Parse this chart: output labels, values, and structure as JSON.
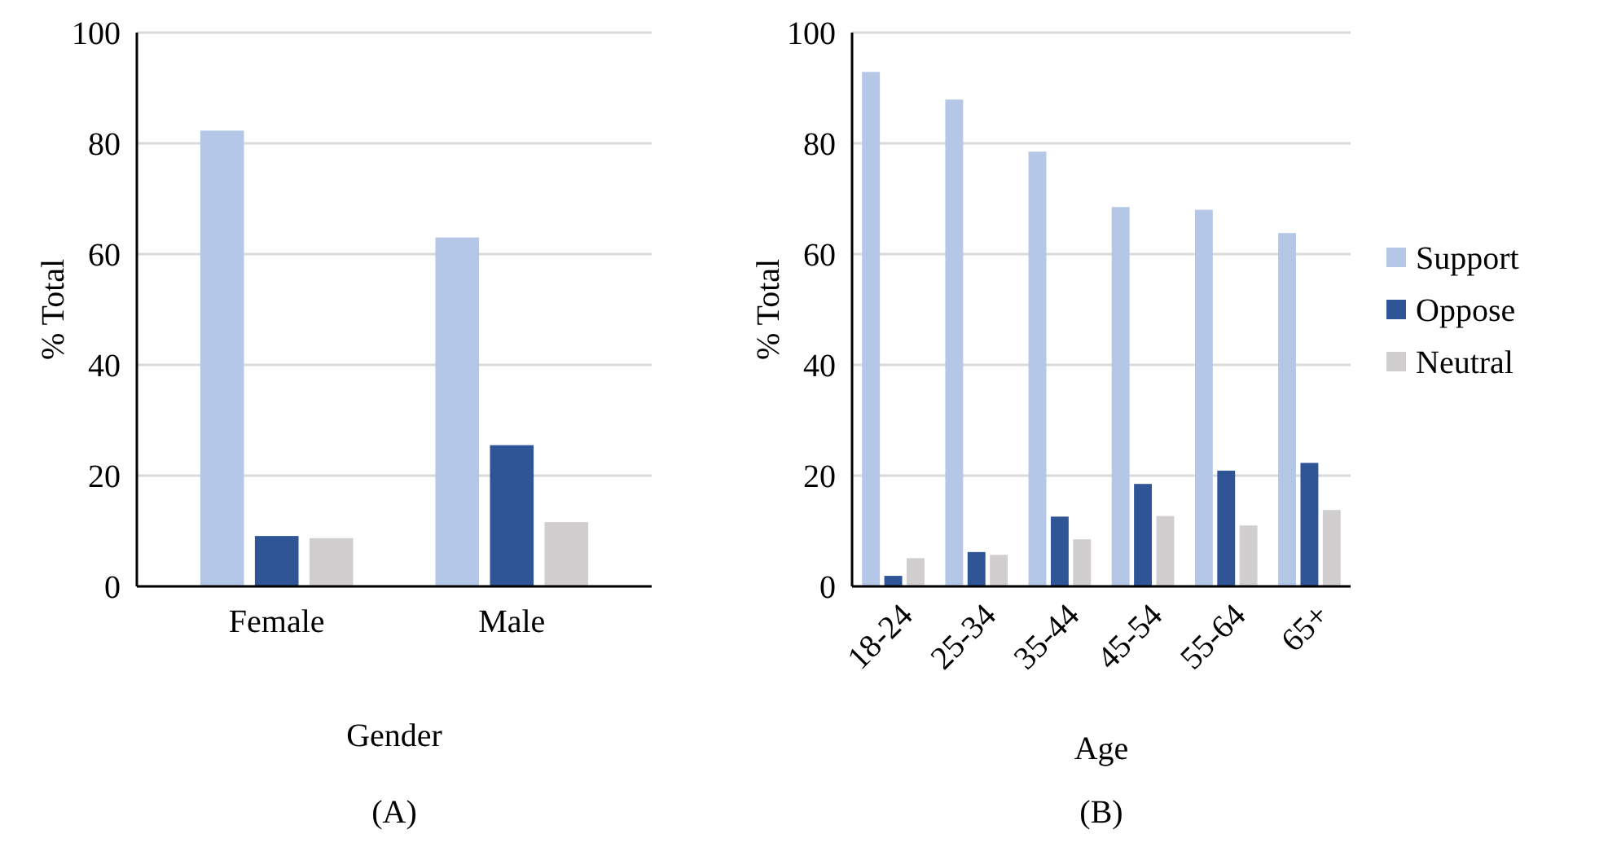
{
  "chart_data": [
    {
      "type": "bar",
      "categories": [
        "Female",
        "Male"
      ],
      "xlabel": "Gender",
      "ylabel": "% Total",
      "ylim": [
        0,
        100
      ],
      "yticks": [
        0,
        20,
        40,
        60,
        80,
        100
      ],
      "grid": "y",
      "legend": false,
      "annotations": [
        "(A)"
      ],
      "series": [
        {
          "color": "#b4c7e7",
          "values": [
            82.3,
            63.0
          ]
        },
        {
          "color": "#2f5597",
          "values": [
            9.1,
            25.5
          ]
        },
        {
          "color": "#d0cece",
          "values": [
            8.7,
            11.6
          ]
        }
      ]
    },
    {
      "type": "bar",
      "categories": [
        "18-24",
        "25-34",
        "35-44",
        "45-54",
        "55-64",
        "65+"
      ],
      "xlabel": "Age",
      "ylabel": "% Total",
      "ylim": [
        0,
        100
      ],
      "yticks": [
        0,
        20,
        40,
        60,
        80,
        100
      ],
      "grid": "y",
      "legend": "right",
      "annotations": [
        "(B)"
      ],
      "series": [
        {
          "name": "Support",
          "color": "#b4c7e7",
          "values": [
            92.9,
            87.9,
            78.5,
            68.5,
            68.0,
            63.8
          ]
        },
        {
          "name": "Oppose",
          "color": "#2f5597",
          "values": [
            1.9,
            6.2,
            12.6,
            18.5,
            20.9,
            22.3
          ]
        },
        {
          "name": "Neutral",
          "color": "#d0cece",
          "values": [
            5.1,
            5.7,
            8.5,
            12.7,
            11.0,
            13.8
          ]
        }
      ]
    }
  ]
}
